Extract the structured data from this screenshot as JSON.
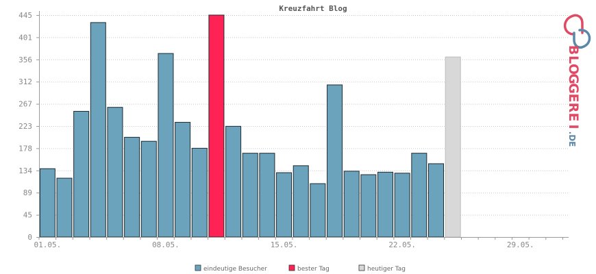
{
  "chart_data": {
    "type": "bar",
    "title": "Kreuzfahrt Blog",
    "ylim": [
      0,
      445
    ],
    "y_ticks": [
      "0",
      "45",
      "89",
      "134",
      "178",
      "223",
      "267",
      "312",
      "356",
      "401",
      "445"
    ],
    "x_tick_labels": [
      {
        "day_index": 0,
        "label": "01.05."
      },
      {
        "day_index": 7,
        "label": "08.05."
      },
      {
        "day_index": 14,
        "label": "15.05."
      },
      {
        "day_index": 21,
        "label": "22.05."
      },
      {
        "day_index": 28,
        "label": "29.05."
      }
    ],
    "days_in_axis": 31,
    "series": [
      {
        "name": "eindeutige Besucher",
        "color": "#6ba3bd",
        "values": [
          137,
          118,
          252,
          430,
          260,
          200,
          192,
          368,
          230,
          178,
          445,
          222,
          168,
          168,
          129,
          143,
          107,
          305,
          132,
          125,
          130,
          128,
          168,
          147,
          361
        ]
      }
    ],
    "best_day_index": 10,
    "today_index": 24,
    "grid": true,
    "legend_position": "bottom",
    "legend": [
      {
        "label": "eindeutige Besucher",
        "color": "#6ba3bd"
      },
      {
        "label": "bester Tag",
        "color": "#ff2255"
      },
      {
        "label": "heutiger Tag",
        "color": "#d8d8d8"
      }
    ]
  },
  "brand": {
    "letters": [
      "B",
      "L",
      "O",
      "G",
      "G",
      "E",
      "R",
      "E",
      "I"
    ],
    "suffix": ".DE",
    "main_color": "#e04a64",
    "suffix_color": "#5c88a8"
  }
}
